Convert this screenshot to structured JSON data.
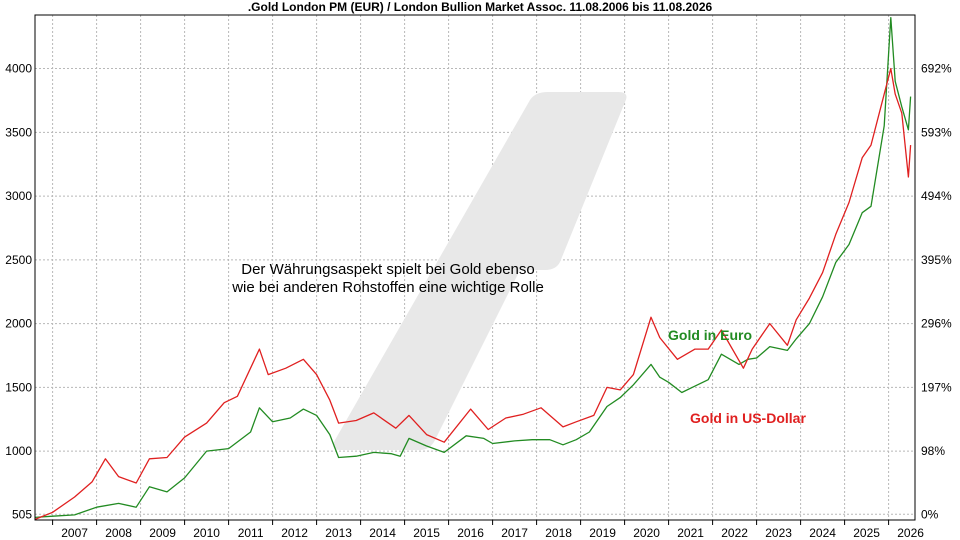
{
  "chart_data": {
    "type": "line",
    "title": ".Gold London PM (EUR) / London Bullion Market Assoc. 11.08.2006 bis 11.08.2026",
    "annotation": [
      "Der Währungsaspekt spielt bei Gold ebenso",
      "wie bei anderen Rohstoffen eine wichtige Rolle"
    ],
    "x_tick_labels": [
      "2007",
      "2008",
      "2009",
      "2010",
      "2011",
      "2012",
      "2013",
      "2014",
      "2015",
      "2016",
      "2017",
      "2018",
      "2019",
      "2020",
      "2021",
      "2022",
      "2023",
      "2024",
      "2025",
      "2026"
    ],
    "y_left_ticks": [
      505,
      1000,
      1500,
      2000,
      2500,
      3000,
      3500,
      4000
    ],
    "y_right_ticks": [
      "0%",
      "98%",
      "197%",
      "296%",
      "395%",
      "494%",
      "593%",
      "692%"
    ],
    "xlim": [
      2006.6,
      2026.6
    ],
    "ylim": [
      460,
      4420
    ],
    "grid": true,
    "series": [
      {
        "name": "Gold in Euro",
        "color": "#228b22",
        "points": [
          [
            2006.6,
            480
          ],
          [
            2007.0,
            490
          ],
          [
            2007.5,
            500
          ],
          [
            2008.0,
            560
          ],
          [
            2008.5,
            590
          ],
          [
            2008.9,
            560
          ],
          [
            2009.2,
            720
          ],
          [
            2009.6,
            680
          ],
          [
            2010.0,
            790
          ],
          [
            2010.5,
            1000
          ],
          [
            2011.0,
            1020
          ],
          [
            2011.5,
            1150
          ],
          [
            2011.7,
            1340
          ],
          [
            2012.0,
            1230
          ],
          [
            2012.4,
            1260
          ],
          [
            2012.7,
            1330
          ],
          [
            2013.0,
            1280
          ],
          [
            2013.3,
            1130
          ],
          [
            2013.5,
            950
          ],
          [
            2013.9,
            960
          ],
          [
            2014.3,
            990
          ],
          [
            2014.7,
            980
          ],
          [
            2014.9,
            960
          ],
          [
            2015.1,
            1100
          ],
          [
            2015.5,
            1040
          ],
          [
            2015.9,
            990
          ],
          [
            2016.4,
            1120
          ],
          [
            2016.8,
            1100
          ],
          [
            2017.0,
            1060
          ],
          [
            2017.5,
            1080
          ],
          [
            2017.9,
            1090
          ],
          [
            2018.3,
            1090
          ],
          [
            2018.6,
            1050
          ],
          [
            2018.9,
            1090
          ],
          [
            2019.2,
            1150
          ],
          [
            2019.6,
            1350
          ],
          [
            2019.9,
            1420
          ],
          [
            2020.2,
            1520
          ],
          [
            2020.6,
            1680
          ],
          [
            2020.8,
            1580
          ],
          [
            2021.0,
            1540
          ],
          [
            2021.3,
            1460
          ],
          [
            2021.6,
            1510
          ],
          [
            2021.9,
            1560
          ],
          [
            2022.2,
            1760
          ],
          [
            2022.6,
            1680
          ],
          [
            2022.8,
            1720
          ],
          [
            2023.0,
            1730
          ],
          [
            2023.3,
            1820
          ],
          [
            2023.7,
            1790
          ],
          [
            2023.9,
            1880
          ],
          [
            2024.2,
            2000
          ],
          [
            2024.5,
            2210
          ],
          [
            2024.8,
            2480
          ],
          [
            2025.1,
            2620
          ],
          [
            2025.4,
            2870
          ],
          [
            2025.6,
            2920
          ],
          [
            2025.9,
            3550
          ],
          [
            2026.05,
            4400
          ],
          [
            2026.15,
            3900
          ],
          [
            2026.3,
            3700
          ],
          [
            2026.45,
            3520
          ],
          [
            2026.5,
            3780
          ]
        ]
      },
      {
        "name": "Gold in US-Dollar",
        "color": "#e02020",
        "points": [
          [
            2006.6,
            465
          ],
          [
            2007.0,
            520
          ],
          [
            2007.5,
            640
          ],
          [
            2007.9,
            760
          ],
          [
            2008.2,
            940
          ],
          [
            2008.5,
            800
          ],
          [
            2008.9,
            750
          ],
          [
            2009.2,
            940
          ],
          [
            2009.6,
            950
          ],
          [
            2010.0,
            1110
          ],
          [
            2010.5,
            1220
          ],
          [
            2010.9,
            1380
          ],
          [
            2011.2,
            1430
          ],
          [
            2011.7,
            1800
          ],
          [
            2011.9,
            1600
          ],
          [
            2012.3,
            1650
          ],
          [
            2012.7,
            1720
          ],
          [
            2013.0,
            1600
          ],
          [
            2013.3,
            1400
          ],
          [
            2013.5,
            1220
          ],
          [
            2013.9,
            1240
          ],
          [
            2014.3,
            1300
          ],
          [
            2014.8,
            1180
          ],
          [
            2015.1,
            1280
          ],
          [
            2015.5,
            1130
          ],
          [
            2015.9,
            1070
          ],
          [
            2016.5,
            1330
          ],
          [
            2016.9,
            1170
          ],
          [
            2017.3,
            1260
          ],
          [
            2017.7,
            1290
          ],
          [
            2018.1,
            1340
          ],
          [
            2018.6,
            1190
          ],
          [
            2018.9,
            1230
          ],
          [
            2019.3,
            1280
          ],
          [
            2019.6,
            1500
          ],
          [
            2019.9,
            1480
          ],
          [
            2020.2,
            1600
          ],
          [
            2020.6,
            2050
          ],
          [
            2020.8,
            1890
          ],
          [
            2021.2,
            1720
          ],
          [
            2021.6,
            1800
          ],
          [
            2021.9,
            1800
          ],
          [
            2022.2,
            1950
          ],
          [
            2022.7,
            1650
          ],
          [
            2022.9,
            1800
          ],
          [
            2023.3,
            2000
          ],
          [
            2023.7,
            1830
          ],
          [
            2023.9,
            2030
          ],
          [
            2024.2,
            2200
          ],
          [
            2024.5,
            2400
          ],
          [
            2024.8,
            2700
          ],
          [
            2025.1,
            2950
          ],
          [
            2025.4,
            3300
          ],
          [
            2025.6,
            3400
          ],
          [
            2025.9,
            3800
          ],
          [
            2026.05,
            4000
          ],
          [
            2026.15,
            3800
          ],
          [
            2026.3,
            3650
          ],
          [
            2026.45,
            3150
          ],
          [
            2026.5,
            3400
          ]
        ]
      }
    ]
  }
}
